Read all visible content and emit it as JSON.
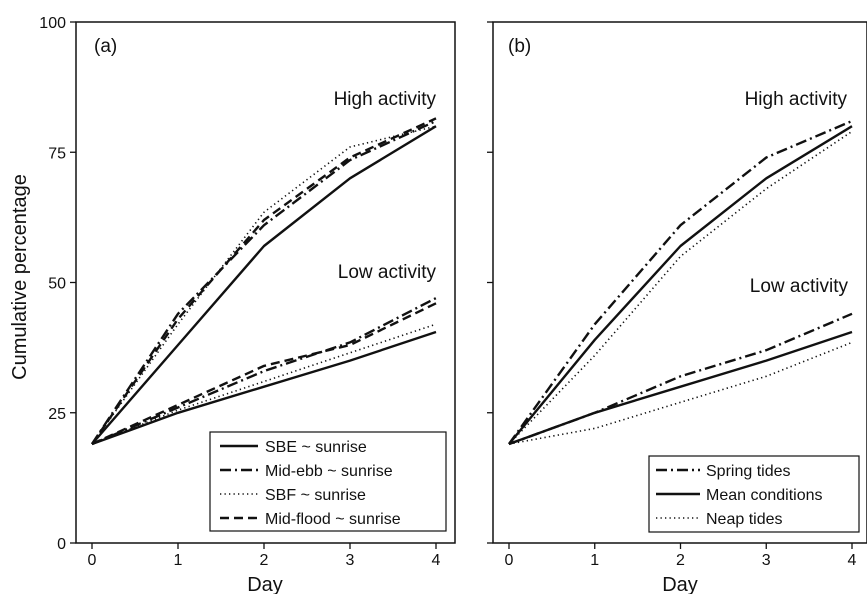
{
  "chart_data": [
    {
      "type": "line",
      "panel_label": "(a)",
      "xlabel": "Day",
      "ylabel": "Cumulative percentage",
      "xlim": [
        0,
        4
      ],
      "ylim": [
        0,
        100
      ],
      "x_ticks": [
        0,
        1,
        2,
        3,
        4
      ],
      "y_ticks": [
        0,
        25,
        50,
        75,
        100
      ],
      "grid": false,
      "legend_position": "bottom-right",
      "annotations": [
        "High activity",
        "Low activity"
      ],
      "x": [
        0,
        1,
        2,
        3,
        4
      ],
      "series": [
        {
          "name": "SBE ~ sunrise",
          "style": "solid",
          "high_activity": [
            19,
            38,
            57,
            70,
            80
          ],
          "low_activity": [
            19,
            25,
            30,
            35,
            40.5
          ]
        },
        {
          "name": "Mid-ebb ~ sunrise",
          "style": "dashdot",
          "high_activity": [
            19,
            44,
            61,
            73.5,
            81
          ],
          "low_activity": [
            19,
            26,
            33,
            38.5,
            47
          ]
        },
        {
          "name": "SBF ~ sunrise",
          "style": "dotted",
          "high_activity": [
            19,
            42,
            63.5,
            76,
            80
          ],
          "low_activity": [
            19,
            25.5,
            31,
            36.5,
            42
          ]
        },
        {
          "name": "Mid-flood ~ sunrise",
          "style": "dashed",
          "high_activity": [
            19,
            43,
            62,
            74,
            81.5
          ],
          "low_activity": [
            19,
            26.5,
            34,
            38,
            46
          ]
        }
      ]
    },
    {
      "type": "line",
      "panel_label": "(b)",
      "xlabel": "Day",
      "ylabel": "",
      "xlim": [
        0,
        4
      ],
      "ylim": [
        0,
        100
      ],
      "x_ticks": [
        0,
        1,
        2,
        3,
        4
      ],
      "y_ticks": [
        0,
        25,
        50,
        75,
        100
      ],
      "grid": false,
      "legend_position": "bottom-right",
      "annotations": [
        "High activity",
        "Low activity"
      ],
      "x": [
        0,
        1,
        2,
        3,
        4
      ],
      "series": [
        {
          "name": "Spring tides",
          "style": "dashdot",
          "high_activity": [
            19,
            42,
            61,
            74,
            81
          ],
          "low_activity": [
            19,
            25,
            32,
            37,
            44
          ]
        },
        {
          "name": "Mean conditions",
          "style": "solid",
          "high_activity": [
            19,
            39,
            57,
            70,
            80
          ],
          "low_activity": [
            19,
            25,
            30,
            35,
            40.5
          ]
        },
        {
          "name": "Neap tides",
          "style": "dotted",
          "high_activity": [
            19,
            36,
            55,
            68,
            79
          ],
          "low_activity": [
            19,
            22,
            27,
            32,
            38.5
          ]
        }
      ]
    }
  ]
}
